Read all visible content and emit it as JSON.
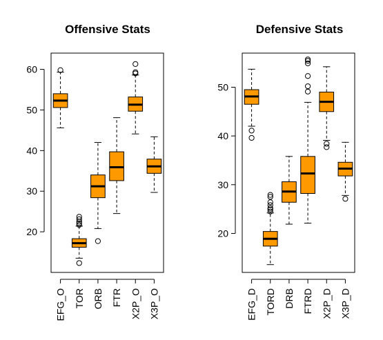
{
  "chart_data": [
    {
      "type": "box",
      "title": "Offensive Stats",
      "ylim": [
        10,
        64
      ],
      "yticks": [
        20,
        30,
        40,
        50,
        60
      ],
      "ytick_labels": [
        "20",
        "30",
        "40",
        "50",
        "60"
      ],
      "box_color": "#FF9900",
      "categories": [
        "EFG_O",
        "TOR",
        "ORB",
        "FTR",
        "X2P_O",
        "X3P_O"
      ],
      "boxes": [
        {
          "min": 45.6,
          "q1": 50.6,
          "median": 52.3,
          "q3": 54.0,
          "max": 59.3,
          "outliers": [
            59.8
          ]
        },
        {
          "min": 13.5,
          "q1": 16.2,
          "median": 17.2,
          "q3": 18.3,
          "max": 21.4,
          "outliers": [
            12.3,
            21.7,
            22.1,
            22.5,
            23.1,
            23.7
          ]
        },
        {
          "min": 20.8,
          "q1": 28.4,
          "median": 31.2,
          "q3": 34.0,
          "max": 42.0,
          "outliers": [
            17.7
          ]
        },
        {
          "min": 24.5,
          "q1": 32.6,
          "median": 35.9,
          "q3": 39.7,
          "max": 48.1,
          "outliers": []
        },
        {
          "min": 44.1,
          "q1": 49.7,
          "median": 51.3,
          "q3": 53.2,
          "max": 58.6,
          "outliers": [
            59.0,
            59.3,
            61.3
          ]
        },
        {
          "min": 29.7,
          "q1": 34.4,
          "median": 36.1,
          "q3": 37.9,
          "max": 43.4,
          "outliers": []
        }
      ]
    },
    {
      "type": "box",
      "title": "Defensive Stats",
      "ylim": [
        12,
        57
      ],
      "yticks": [
        20,
        30,
        40,
        50
      ],
      "ytick_labels": [
        "20",
        "30",
        "40",
        "50"
      ],
      "box_color": "#FF9900",
      "categories": [
        "EFG_D",
        "TORD",
        "DRB",
        "FTRD",
        "X2P_D",
        "X3P_D"
      ],
      "boxes": [
        {
          "min": 42.0,
          "q1": 46.5,
          "median": 48.1,
          "q3": 49.5,
          "max": 53.7,
          "outliers": [
            39.6,
            41.1
          ]
        },
        {
          "min": 13.6,
          "q1": 17.4,
          "median": 18.9,
          "q3": 20.4,
          "max": 24.2,
          "outliers": [
            24.5,
            24.9,
            25.2,
            25.8,
            26.4,
            27.5,
            27.9
          ]
        },
        {
          "min": 21.9,
          "q1": 26.4,
          "median": 28.6,
          "q3": 30.6,
          "max": 35.8,
          "outliers": []
        },
        {
          "min": 22.1,
          "q1": 28.2,
          "median": 32.3,
          "q3": 35.8,
          "max": 46.9,
          "outliers": [
            49.1,
            50.2,
            52.3,
            54.9,
            55.4,
            55.7
          ]
        },
        {
          "min": 39.1,
          "q1": 45.0,
          "median": 47.0,
          "q3": 49.0,
          "max": 54.2,
          "outliers": [
            37.7,
            38.4
          ]
        },
        {
          "min": 27.8,
          "q1": 31.8,
          "median": 33.3,
          "q3": 34.6,
          "max": 38.7,
          "outliers": [
            27.1
          ]
        }
      ]
    }
  ]
}
